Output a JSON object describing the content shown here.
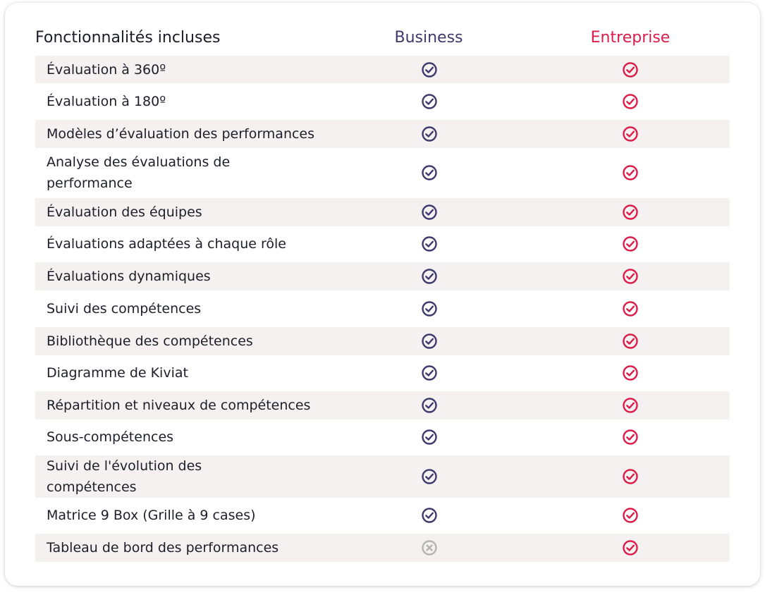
{
  "header": {
    "feature_col": "Fonctionnalités incluses",
    "business_col": "Business",
    "enterprise_col": "Entreprise"
  },
  "colors": {
    "business": "#3e3a6d",
    "enterprise": "#dc1d4a",
    "unavailable": "#b3b3b3",
    "row_shade": "#f5f1f1"
  },
  "rows": [
    {
      "label": "Évaluation à 360º",
      "business": "check",
      "enterprise": "check"
    },
    {
      "label": "Évaluation à 180º",
      "business": "check",
      "enterprise": "check"
    },
    {
      "label": "Modèles d’évaluation des performances",
      "business": "check",
      "enterprise": "check"
    },
    {
      "label": "Analyse des évaluations de performance",
      "business": "check",
      "enterprise": "check"
    },
    {
      "label": "Évaluation des équipes",
      "business": "check",
      "enterprise": "check"
    },
    {
      "label": "Évaluations adaptées à chaque rôle",
      "business": "check",
      "enterprise": "check"
    },
    {
      "label": "Évaluations dynamiques",
      "business": "check",
      "enterprise": "check"
    },
    {
      "label": "Suivi des compétences",
      "business": "check",
      "enterprise": "check"
    },
    {
      "label": "Bibliothèque des compétences",
      "business": "check",
      "enterprise": "check"
    },
    {
      "label": "Diagramme de Kiviat",
      "business": "check",
      "enterprise": "check"
    },
    {
      "label": "Répartition et niveaux de compétences",
      "business": "check",
      "enterprise": "check"
    },
    {
      "label": "Sous-compétences",
      "business": "check",
      "enterprise": "check"
    },
    {
      "label": "Suivi de l'évolution des compétences",
      "business": "check",
      "enterprise": "check"
    },
    {
      "label": "Matrice 9 Box (Grille à 9 cases)",
      "business": "check",
      "enterprise": "check"
    },
    {
      "label": "Tableau de bord des performances",
      "business": "cross",
      "enterprise": "check"
    }
  ]
}
